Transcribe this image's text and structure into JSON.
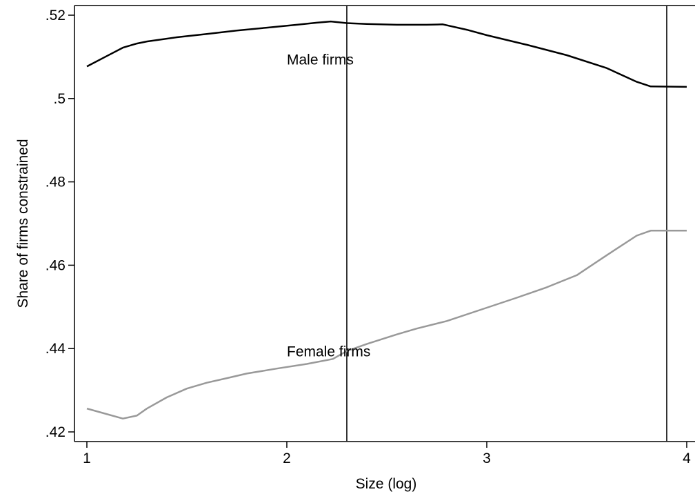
{
  "chart_data": {
    "type": "line",
    "xlabel": "Size (log)",
    "ylabel": "Share of firms constrained",
    "xlim": [
      1,
      4
    ],
    "ylim": [
      0.42,
      0.52
    ],
    "x_ticks": [
      1,
      2,
      3,
      4
    ],
    "x_tick_labels": [
      "1",
      "2",
      "3",
      "4"
    ],
    "y_ticks": [
      0.42,
      0.44,
      0.46,
      0.48,
      0.5,
      0.52
    ],
    "y_tick_labels": [
      ".42",
      ".44",
      ".46",
      ".48",
      ".5",
      ".52"
    ],
    "grid": false,
    "legend": "none",
    "reference_lines_x": [
      2.3,
      3.9
    ],
    "series": [
      {
        "name": "Male firms",
        "color": "#000000",
        "label_at": [
          2.0,
          0.5093
        ],
        "x": [
          1.0,
          1.1,
          1.18,
          1.25,
          1.3,
          1.45,
          1.6,
          1.75,
          1.9,
          2.05,
          2.15,
          2.22,
          2.3,
          2.4,
          2.55,
          2.7,
          2.78,
          2.9,
          3.0,
          3.2,
          3.4,
          3.6,
          3.75,
          3.82,
          4.0
        ],
        "y": [
          0.5077,
          0.5102,
          0.5122,
          0.5132,
          0.5137,
          0.5147,
          0.5155,
          0.5163,
          0.517,
          0.5177,
          0.5182,
          0.5185,
          0.5181,
          0.5179,
          0.5177,
          0.5177,
          0.5178,
          0.5165,
          0.5152,
          0.5129,
          0.5104,
          0.5073,
          0.504,
          0.5029,
          0.5028
        ]
      },
      {
        "name": "Female firms",
        "color": "#999999",
        "label_at": [
          2.0,
          0.4393
        ],
        "x": [
          1.0,
          1.06,
          1.18,
          1.25,
          1.3,
          1.4,
          1.5,
          1.6,
          1.7,
          1.8,
          1.95,
          2.1,
          2.23,
          2.3,
          2.4,
          2.55,
          2.65,
          2.8,
          3.0,
          3.15,
          3.3,
          3.45,
          3.6,
          3.75,
          3.82,
          4.0
        ],
        "y": [
          0.4256,
          0.4248,
          0.4232,
          0.4239,
          0.4256,
          0.4283,
          0.4304,
          0.4318,
          0.4329,
          0.434,
          0.4352,
          0.4363,
          0.4375,
          0.4394,
          0.4411,
          0.4434,
          0.4448,
          0.4466,
          0.4498,
          0.4522,
          0.4547,
          0.4576,
          0.4624,
          0.4671,
          0.4683,
          0.4683
        ]
      }
    ]
  }
}
